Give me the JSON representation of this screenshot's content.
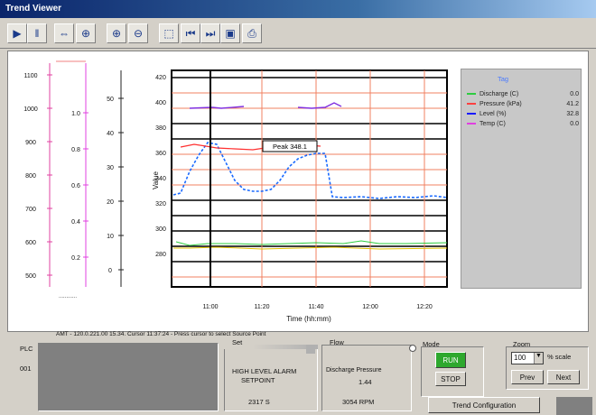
{
  "window": {
    "title": "Trend Viewer"
  },
  "toolbar": {
    "buttons": [
      {
        "name": "play-icon",
        "glyph": "▶"
      },
      {
        "name": "pause-icon",
        "glyph": "‖"
      },
      {
        "name": "pan-icon",
        "glyph": "⇔"
      },
      {
        "name": "crosshair-icon",
        "glyph": "⊕"
      },
      {
        "name": "zoom-in-icon",
        "glyph": "⊕"
      },
      {
        "name": "zoom-out-icon",
        "glyph": "⊖"
      },
      {
        "name": "zoom-box-icon",
        "glyph": "⬚"
      },
      {
        "name": "step-back-icon",
        "glyph": "⏮"
      },
      {
        "name": "step-forward-icon",
        "glyph": "⏭"
      },
      {
        "name": "save-icon",
        "glyph": "▣"
      },
      {
        "name": "print-icon",
        "glyph": "⎙"
      }
    ]
  },
  "axes": {
    "axis1_ticks": [
      "1100",
      "1000",
      "900",
      "800",
      "700",
      "600",
      "500"
    ],
    "axis2_ticks": [
      "1.0",
      "0.8",
      "0.6",
      "0.4",
      "0.2"
    ],
    "axis3_ticks": [
      "50",
      "40",
      "30",
      "20",
      "10",
      "0"
    ],
    "main_ticks": [
      "420",
      "400",
      "380",
      "360",
      "340",
      "320",
      "300",
      "280"
    ],
    "main_ylabel": "Value",
    "x_ticks": [
      "11:00",
      "11:20",
      "11:40",
      "12:00",
      "12:20"
    ],
    "xlabel": "Time (hh:mm)",
    "axis1_footer": "............"
  },
  "chart_callout": "Peak 348.1",
  "legend": {
    "header": "Tag",
    "items": [
      {
        "name": "Discharge (C)",
        "value": "0.0",
        "color": "#2ecc40"
      },
      {
        "name": "Pressure (kPa)",
        "value": "41.2",
        "color": "#ff4040"
      },
      {
        "name": "Level (%)",
        "value": "32.8",
        "color": "#1a1aff"
      },
      {
        "name": "Temp (C)",
        "value": "0.0",
        "color": "#e040e0"
      }
    ]
  },
  "status_line": "AMT - 120.0.221.00  15.34.  Cursor 11:37:24 - Press cursor  to select  Source Point",
  "bottom": {
    "left_label_1": "PLC",
    "left_label_2": "001",
    "panel2_head": "Set",
    "panel2_line1": "HIGH LEVEL ALARM",
    "panel2_line2": "SETPOINT",
    "panel2_value": "2317 S",
    "panel3_head": "Flow",
    "panel3_line1": "Discharge Pressure",
    "panel3_line2": "1.44",
    "panel3_value": "3054 RPM",
    "run_group": "Mode",
    "run_button": "RUN",
    "stop_button": "STOP",
    "zoom_group": "Zoom",
    "zoom_value": "100",
    "zoom_unit": "% scale",
    "prev_button": "Prev",
    "next_button": "Next",
    "config_button": "Trend Configuration"
  }
}
